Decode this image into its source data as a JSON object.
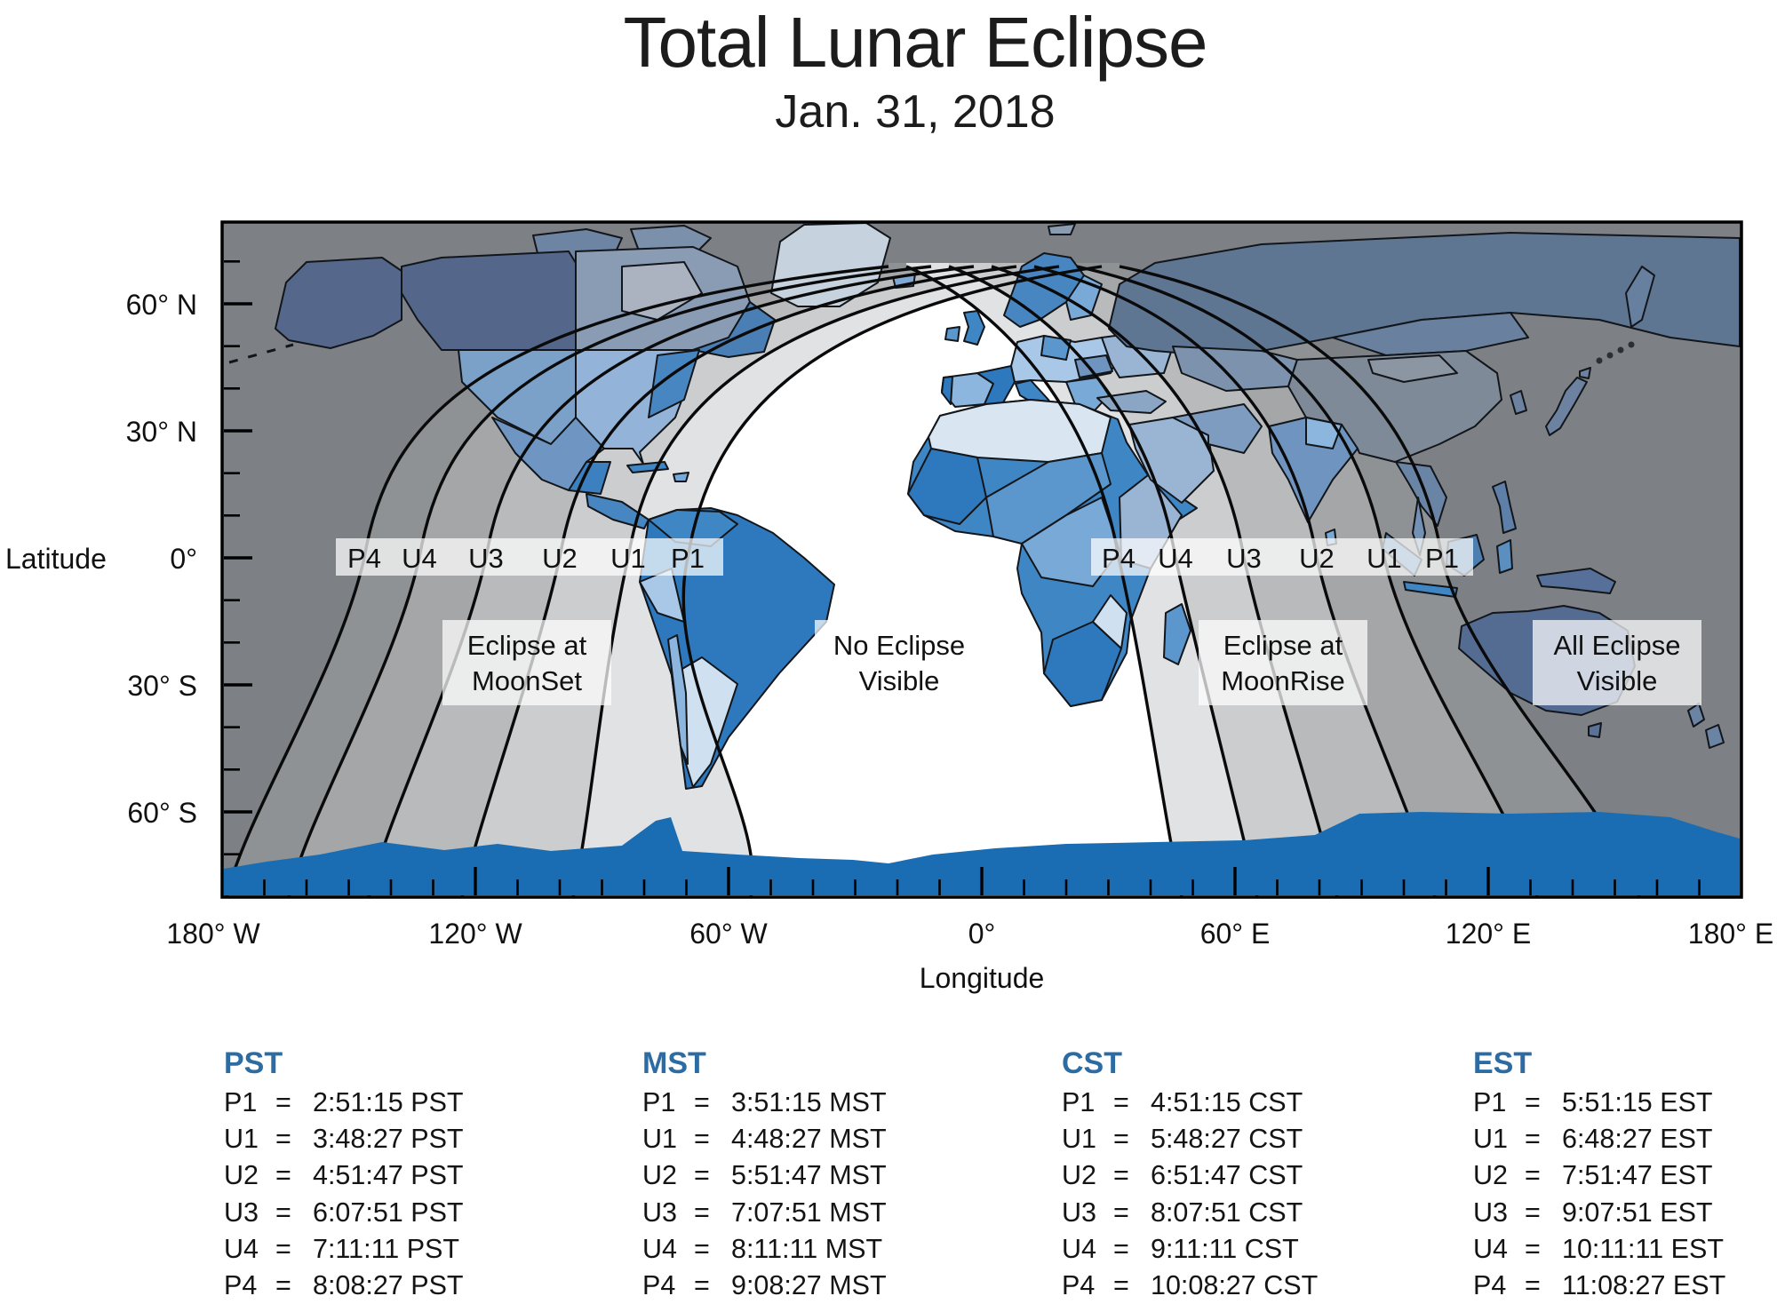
{
  "page": {
    "title": "Total Lunar Eclipse",
    "subtitle": "Jan. 31, 2018"
  },
  "axes": {
    "y_label": "Latitude",
    "x_label": "Longitude",
    "y_ticks": [
      "60° N",
      "30° N",
      "0°",
      "30° S",
      "60° S"
    ],
    "x_ticks": [
      "180° W",
      "120° W",
      "60° W",
      "0°",
      "60° E",
      "120° E",
      "180° E"
    ]
  },
  "map": {
    "contacts_west": [
      "P4",
      "U4",
      "U3",
      "U2",
      "U1",
      "P1"
    ],
    "contacts_east": [
      "P4",
      "U4",
      "U3",
      "U2",
      "U1",
      "P1"
    ],
    "regions": [
      {
        "line1": "Eclipse at",
        "line2": "MoonSet"
      },
      {
        "line1": "No Eclipse",
        "line2": "Visible"
      },
      {
        "line1": "Eclipse at",
        "line2": "MoonRise"
      },
      {
        "line1": "All Eclipse",
        "line2": "Visible"
      }
    ]
  },
  "equals": "=",
  "tables": [
    {
      "header": "PST",
      "rows": [
        {
          "label": "P1",
          "time": "2:51:15 PST"
        },
        {
          "label": "U1",
          "time": "3:48:27 PST"
        },
        {
          "label": "U2",
          "time": "4:51:47 PST"
        },
        {
          "label": "U3",
          "time": "6:07:51 PST"
        },
        {
          "label": "U4",
          "time": "7:11:11 PST"
        },
        {
          "label": "P4",
          "time": "8:08:27 PST"
        }
      ]
    },
    {
      "header": "MST",
      "rows": [
        {
          "label": "P1",
          "time": "3:51:15 MST"
        },
        {
          "label": "U1",
          "time": "4:48:27 MST"
        },
        {
          "label": "U2",
          "time": "5:51:47 MST"
        },
        {
          "label": "U3",
          "time": "7:07:51 MST"
        },
        {
          "label": "U4",
          "time": "8:11:11 MST"
        },
        {
          "label": "P4",
          "time": "9:08:27 MST"
        }
      ]
    },
    {
      "header": "CST",
      "rows": [
        {
          "label": "P1",
          "time": "4:51:15 CST"
        },
        {
          "label": "U1",
          "time": "5:48:27 CST"
        },
        {
          "label": "U2",
          "time": "6:51:47 CST"
        },
        {
          "label": "U3",
          "time": "8:07:51 CST"
        },
        {
          "label": "U4",
          "time": "9:11:11 CST"
        },
        {
          "label": "P4",
          "time": "10:08:27 CST"
        }
      ]
    },
    {
      "header": "EST",
      "rows": [
        {
          "label": "P1",
          "time": "5:51:15 EST"
        },
        {
          "label": "U1",
          "time": "6:48:27 EST"
        },
        {
          "label": "U2",
          "time": "7:51:47 EST"
        },
        {
          "label": "U3",
          "time": "9:07:51 EST"
        },
        {
          "label": "U4",
          "time": "10:11:11 EST"
        },
        {
          "label": "P4",
          "time": "11:08:27 EST"
        }
      ]
    }
  ],
  "colors": {
    "table_header": "#2d6ca3",
    "text": "#1a1a1a",
    "zone_all_visible": "#7d8084",
    "zone_bands_west": [
      "#8f9294",
      "#a4a6a8",
      "#b8babb",
      "#cccdce",
      "#e1e2e3",
      "#ffffff"
    ],
    "zone_bands_east": [
      "#e1e2e3",
      "#cccdce",
      "#b8babb",
      "#a4a6a8",
      "#8f9294",
      "#7d8084"
    ],
    "no_eclipse_zone": "#ffffff",
    "antarctica": "#1b6db3",
    "land_palette": [
      "#2e79bd",
      "#3f86c4",
      "#5b97cc",
      "#79a9d6",
      "#a9c8e8",
      "#d9e5f1",
      "#5f7693",
      "#546b92"
    ],
    "label_box": "rgba(255,255,255,0.72)"
  }
}
